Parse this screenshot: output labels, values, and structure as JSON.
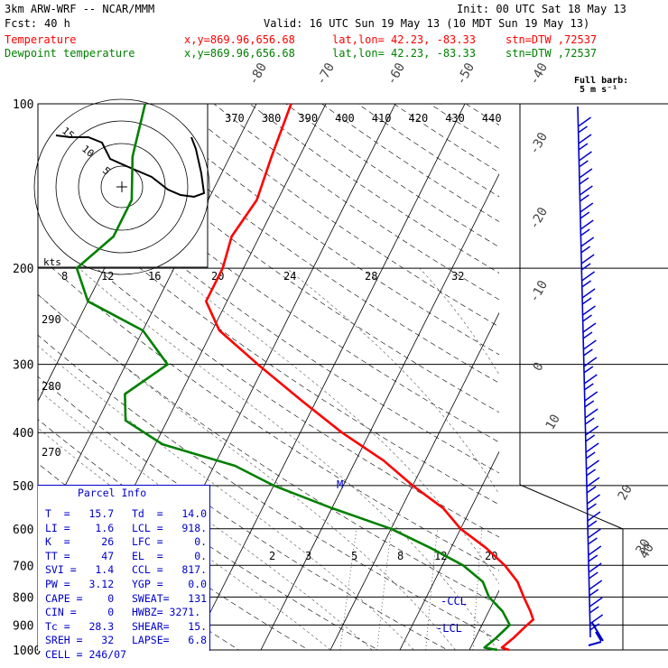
{
  "header": {
    "model": "3km ARW-WRF -- NCAR/MMM",
    "init": "Init: 00 UTC Sat 18 May 13",
    "fcst_label": "Fcst:",
    "fcst_hours": "40 h",
    "valid": "Valid: 16 UTC Sun 19 May 13 (10 MDT Sun 19 May 13)",
    "temp_label": "Temperature",
    "dew_label": "Dewpoint temperature",
    "xy": "x,y=869.96,656.68",
    "latlon": "lat,lon= 42.23, -83.33",
    "stn": "stn=DTW ,72537",
    "temp_color": "#ff0000",
    "dew_color": "#008000"
  },
  "barb_legend": {
    "title": "Full barb:",
    "unit": "5 m s⁻¹"
  },
  "chart_data": {
    "type": "line",
    "subtype": "skew-T log-P",
    "y_axis": {
      "label": "",
      "scale": "log",
      "ticks": [
        "100",
        "200",
        "300",
        "400",
        "500",
        "600",
        "700",
        "800",
        "900",
        "1000"
      ],
      "ylim": [
        1000,
        100
      ]
    },
    "isotherm_labels": [
      "-80",
      "-70",
      "-60",
      "-50",
      "-40",
      "-30",
      "-20",
      "-10",
      "0",
      "10",
      "20",
      "30",
      "40"
    ],
    "theta_e_labels": [
      "370",
      "380",
      "390",
      "400",
      "410",
      "420",
      "430",
      "440"
    ],
    "dry_adiabat_labels": [
      "290",
      "280",
      "270"
    ],
    "mixing_ratio_labels": [
      "2",
      "3",
      "5",
      "8",
      "12",
      "20"
    ],
    "series": [
      {
        "name": "Temperature",
        "color": "#ff0000",
        "points": [
          [
            100,
            -55
          ],
          [
            125,
            -54
          ],
          [
            150,
            -53
          ],
          [
            175,
            -54
          ],
          [
            200,
            -53
          ],
          [
            230,
            -53
          ],
          [
            260,
            -49
          ],
          [
            300,
            -41
          ],
          [
            350,
            -32
          ],
          [
            400,
            -24
          ],
          [
            450,
            -16
          ],
          [
            500,
            -10
          ],
          [
            550,
            -4
          ],
          [
            600,
            0
          ],
          [
            650,
            5
          ],
          [
            700,
            9
          ],
          [
            750,
            12
          ],
          [
            800,
            14
          ],
          [
            850,
            16
          ],
          [
            880,
            17
          ],
          [
            900,
            16.5
          ],
          [
            950,
            15.5
          ],
          [
            990,
            14.5
          ],
          [
            1000,
            15.7
          ]
        ]
      },
      {
        "name": "Dewpoint temperature",
        "color": "#008000",
        "points": [
          [
            100,
            -76
          ],
          [
            125,
            -74
          ],
          [
            150,
            -71
          ],
          [
            175,
            -71
          ],
          [
            200,
            -74
          ],
          [
            230,
            -70
          ],
          [
            260,
            -60
          ],
          [
            300,
            -54
          ],
          [
            340,
            -58
          ],
          [
            380,
            -56
          ],
          [
            420,
            -49
          ],
          [
            460,
            -37
          ],
          [
            500,
            -30
          ],
          [
            550,
            -20
          ],
          [
            600,
            -10
          ],
          [
            650,
            -3
          ],
          [
            700,
            3
          ],
          [
            750,
            7
          ],
          [
            800,
            9
          ],
          [
            850,
            12
          ],
          [
            900,
            14
          ],
          [
            950,
            13
          ],
          [
            990,
            12
          ],
          [
            1000,
            14.0
          ]
        ]
      }
    ],
    "hodograph": {
      "axis_label": "kts",
      "rings": [
        "5",
        "10",
        "15"
      ],
      "xticks": [
        "8",
        "12",
        "16",
        "20",
        "24",
        "28",
        "32"
      ]
    },
    "annotations": {
      "lcl_label": "-LCL",
      "ccl_label": "-CCL",
      "el_label": "M"
    }
  },
  "parcel_info": {
    "title": "Parcel Info",
    "rows": [
      [
        "T  =   15.7",
        "Td  =   14.0"
      ],
      [
        "LI =    1.6",
        "LCL =   918."
      ],
      [
        "K  =     26",
        "LFC =     0."
      ],
      [
        "TT =     47",
        "EL  =     0."
      ],
      [
        "SVI =   1.4",
        "CCL =   817."
      ],
      [
        "PW =   3.12",
        "YGP =    0.0"
      ],
      [
        "CAPE =    0",
        "SWEAT=   131"
      ],
      [
        "CIN =     0",
        "HWBZ= 3271."
      ],
      [
        "Tc =   28.3",
        "SHEAR=   15."
      ],
      [
        "SREH =   32",
        "LAPSE=   6.8"
      ],
      [
        "CELL = 246/07",
        ""
      ]
    ]
  }
}
